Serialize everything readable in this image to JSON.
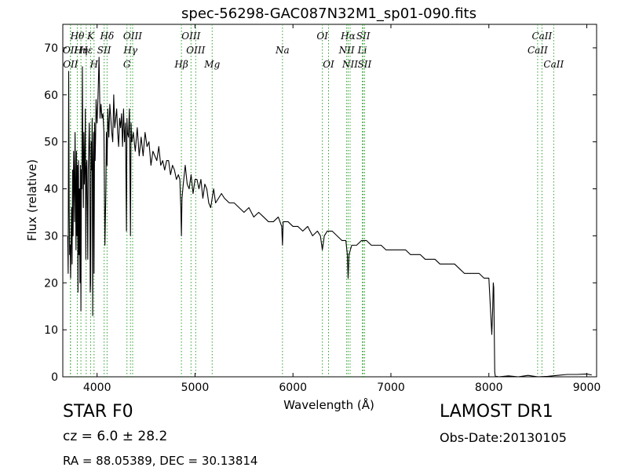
{
  "chart_data": {
    "type": "line",
    "title": "spec-56298-GAC087N32M1_sp01-090.fits",
    "xlabel": "Wavelength (Å)",
    "ylabel": "Flux (relative)",
    "xlim": [
      3650,
      9100
    ],
    "ylim": [
      0,
      75
    ],
    "xticks": [
      4000,
      5000,
      6000,
      7000,
      8000,
      9000
    ],
    "yticks": [
      0,
      10,
      20,
      30,
      40,
      50,
      60,
      70
    ],
    "grid": false,
    "line_color": "#000000",
    "marker_color": "#2ca02c",
    "line_markers": [
      {
        "label": "Hθ",
        "x": 3798,
        "row": 1
      },
      {
        "label": "OII",
        "x": 3727,
        "row": 2
      },
      {
        "label": "OII",
        "x": 3729,
        "row": 4
      },
      {
        "label": "Hη",
        "x": 3835,
        "row": 3
      },
      {
        "label": "Hε",
        "x": 3889,
        "row": 2
      },
      {
        "label": "K",
        "x": 3934,
        "row": 1
      },
      {
        "label": "SII",
        "x": 4072,
        "row": 2
      },
      {
        "label": "H",
        "x": 3969,
        "row": 4
      },
      {
        "label": "Hδ",
        "x": 4102,
        "row": 1
      },
      {
        "label": "OIII",
        "x": 4363,
        "row": 1
      },
      {
        "label": "Hγ",
        "x": 4341,
        "row": 2
      },
      {
        "label": "G",
        "x": 4305,
        "row": 4
      },
      {
        "label": "OIII",
        "x": 4959,
        "row": 1
      },
      {
        "label": "OIII",
        "x": 5007,
        "row": 3
      },
      {
        "label": "Hβ",
        "x": 4861,
        "row": 4
      },
      {
        "label": "Mg",
        "x": 5175,
        "row": 4
      },
      {
        "label": "Na",
        "x": 5893,
        "row": 3
      },
      {
        "label": "OI",
        "x": 6300,
        "row": 1
      },
      {
        "label": "OI",
        "x": 6363,
        "row": 4
      },
      {
        "label": "Hα",
        "x": 6563,
        "row": 1
      },
      {
        "label": "SII",
        "x": 6717,
        "row": 1
      },
      {
        "label": "NII",
        "x": 6548,
        "row": 3
      },
      {
        "label": "Li",
        "x": 6708,
        "row": 3
      },
      {
        "label": "NII",
        "x": 6583,
        "row": 4
      },
      {
        "label": "SII",
        "x": 6731,
        "row": 4
      },
      {
        "label": "CaII",
        "x": 8542,
        "row": 1
      },
      {
        "label": "CaII",
        "x": 8498,
        "row": 3
      },
      {
        "label": "CaII",
        "x": 8662,
        "row": 4
      }
    ],
    "series": [
      {
        "x": [
          3700,
          3705,
          3710,
          3715,
          3720,
          3725,
          3730,
          3735,
          3740,
          3745,
          3750,
          3755,
          3760,
          3765,
          3770,
          3775,
          3780,
          3785,
          3790,
          3795,
          3800,
          3805,
          3810,
          3815,
          3820,
          3825,
          3830,
          3835,
          3840,
          3845,
          3850,
          3855,
          3860,
          3865,
          3870,
          3875,
          3880,
          3885,
          3890,
          3895,
          3900,
          3905,
          3910,
          3915,
          3920,
          3925,
          3930,
          3934,
          3940,
          3945,
          3950,
          3955,
          3960,
          3965,
          3969,
          3975,
          3980,
          3985,
          3990,
          3995,
          4000,
          4010,
          4020,
          4030,
          4040,
          4050,
          4060,
          4070,
          4080,
          4090,
          4095,
          4102,
          4110,
          4120,
          4130,
          4140,
          4150,
          4160,
          4170,
          4180,
          4190,
          4200,
          4210,
          4220,
          4230,
          4240,
          4250,
          4260,
          4270,
          4280,
          4290,
          4300,
          4305,
          4310,
          4320,
          4330,
          4335,
          4341,
          4347,
          4355,
          4370,
          4390,
          4410,
          4430,
          4450,
          4470,
          4490,
          4510,
          4530,
          4550,
          4570,
          4590,
          4610,
          4630,
          4650,
          4670,
          4690,
          4710,
          4730,
          4750,
          4770,
          4790,
          4810,
          4830,
          4845,
          4855,
          4861,
          4867,
          4880,
          4900,
          4920,
          4940,
          4960,
          4980,
          5000,
          5020,
          5040,
          5060,
          5080,
          5100,
          5120,
          5140,
          5160,
          5175,
          5190,
          5210,
          5240,
          5270,
          5300,
          5350,
          5400,
          5450,
          5500,
          5550,
          5600,
          5650,
          5700,
          5750,
          5800,
          5850,
          5885,
          5893,
          5900,
          5950,
          6000,
          6050,
          6100,
          6150,
          6200,
          6250,
          6280,
          6300,
          6320,
          6350,
          6400,
          6450,
          6500,
          6540,
          6555,
          6563,
          6572,
          6600,
          6650,
          6700,
          6750,
          6800,
          6850,
          6900,
          6950,
          7000,
          7050,
          7100,
          7150,
          7200,
          7250,
          7300,
          7350,
          7400,
          7450,
          7500,
          7550,
          7600,
          7650,
          7700,
          7750,
          7800,
          7850,
          7900,
          7950,
          8000,
          8030,
          8040,
          8045,
          8050,
          8055,
          8060,
          8065,
          8070,
          8075,
          8080,
          8100,
          8200,
          8300,
          8400,
          8500,
          8600,
          8700,
          8800,
          8900,
          9000,
          9050
        ],
        "y": [
          30,
          22,
          65,
          36,
          26,
          28,
          21,
          30,
          36,
          24,
          44,
          30,
          48,
          42,
          33,
          52,
          41,
          27,
          48,
          30,
          45,
          18,
          46,
          26,
          40,
          20,
          45,
          14,
          44,
          40,
          66,
          47,
          36,
          52,
          41,
          45,
          57,
          25,
          44,
          46,
          36,
          25,
          44,
          48,
          54,
          48,
          18,
          20,
          50,
          44,
          55,
          13,
          45,
          52,
          22,
          54,
          46,
          51,
          59,
          56,
          54,
          60,
          68,
          55,
          58,
          55,
          56,
          52,
          28,
          40,
          52,
          45,
          57,
          51,
          58,
          55,
          52,
          50,
          60,
          53,
          55,
          57,
          52,
          49,
          55,
          53,
          56,
          49,
          57,
          50,
          54,
          31,
          55,
          52,
          51,
          57,
          46,
          30,
          54,
          50,
          52,
          48,
          53,
          47,
          51,
          47,
          52,
          49,
          50,
          45,
          48,
          47,
          46,
          49,
          45,
          46,
          44,
          46,
          46,
          43,
          45,
          44,
          42,
          43,
          42,
          36,
          30,
          38,
          41,
          45,
          41,
          40,
          43,
          39,
          42,
          42,
          40,
          42,
          38,
          41,
          40,
          37,
          36,
          38,
          40,
          37,
          38,
          39,
          38,
          37,
          37,
          36,
          35,
          36,
          34,
          35,
          34,
          33,
          33,
          34,
          32,
          28,
          33,
          33,
          32,
          32,
          31,
          32,
          30,
          31,
          30,
          27,
          30,
          31,
          31,
          30,
          29,
          29,
          26,
          21,
          26,
          28,
          28,
          29,
          29,
          28,
          28,
          28,
          27,
          27,
          27,
          27,
          27,
          26,
          26,
          26,
          25,
          25,
          25,
          24,
          24,
          24,
          24,
          23,
          22,
          22,
          22,
          22,
          21,
          21,
          9,
          15,
          20,
          19,
          10,
          1,
          0.2,
          0.1,
          0,
          0.1,
          0,
          0.2,
          0,
          0.3,
          0,
          0.1,
          0.3,
          0.5,
          0.5,
          0.6,
          0.4
        ]
      }
    ]
  },
  "info": {
    "object_class": "STAR   F0",
    "redshift": "cz = 6.0 ± 28.2",
    "coords": "RA = 88.05389, DEC = 30.13814",
    "survey": "LAMOST DR1",
    "obs_date": "Obs-Date:20130105"
  }
}
